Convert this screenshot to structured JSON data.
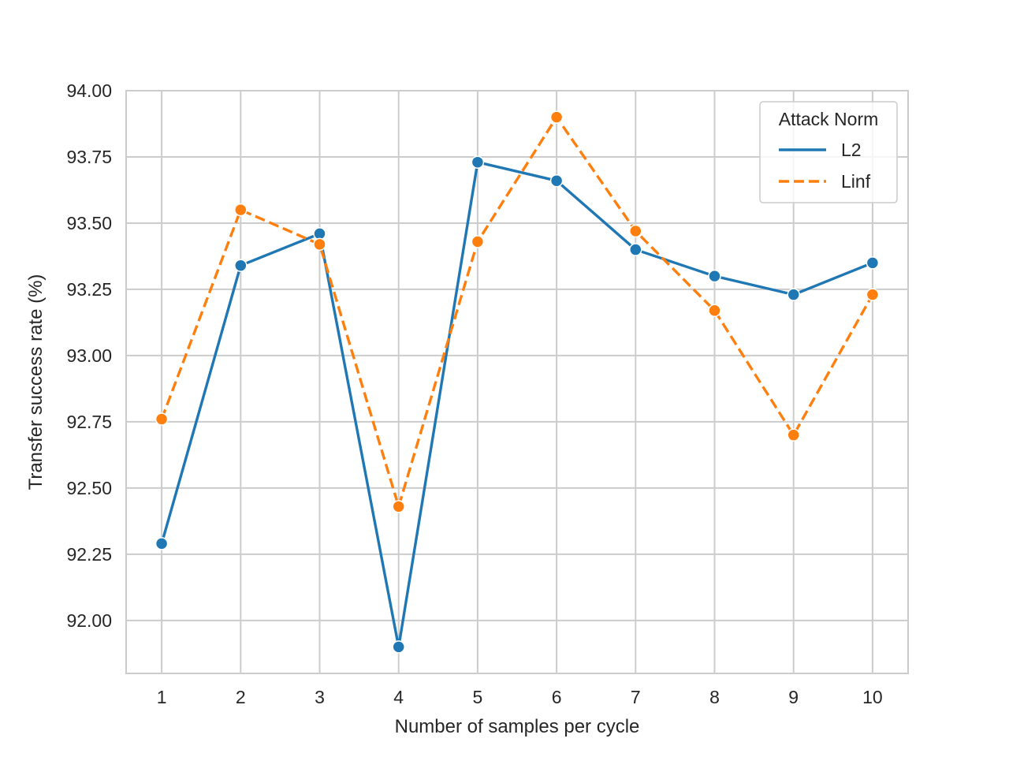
{
  "chart_data": {
    "type": "line",
    "title": "",
    "xlabel": "Number of samples per cycle",
    "ylabel": "Transfer success rate (%)",
    "x": [
      1,
      2,
      3,
      4,
      5,
      6,
      7,
      8,
      9,
      10
    ],
    "xticks": [
      "1",
      "2",
      "3",
      "4",
      "5",
      "6",
      "7",
      "8",
      "9",
      "10"
    ],
    "yticks": [
      "92.00",
      "92.25",
      "92.50",
      "92.75",
      "93.00",
      "93.25",
      "93.50",
      "93.75",
      "94.00"
    ],
    "ylim": [
      91.8,
      94.0
    ],
    "xlim": [
      0.55,
      10.45
    ],
    "grid": true,
    "legend": {
      "title": "Attack Norm",
      "placement": "top-right"
    },
    "series": [
      {
        "name": "L2",
        "color": "#1f77b4",
        "line_style": "solid",
        "values": [
          92.29,
          93.34,
          93.46,
          91.9,
          93.73,
          93.66,
          93.4,
          93.3,
          93.23,
          93.35
        ]
      },
      {
        "name": "Linf",
        "color": "#ff7f0e",
        "line_style": "dashed",
        "values": [
          92.76,
          93.55,
          93.42,
          92.43,
          93.43,
          93.9,
          93.47,
          93.17,
          92.7,
          93.23
        ]
      }
    ]
  }
}
